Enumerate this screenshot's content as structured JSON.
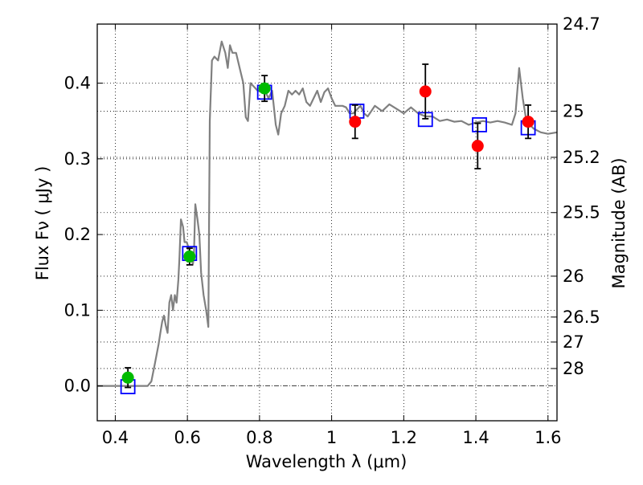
{
  "chart_data": {
    "type": "scatter",
    "xlabel": "Wavelength  λ (μm)",
    "ylabel": "Flux  Fν  ( μJy )",
    "y2label": "Magnitude (AB)",
    "xlim": [
      0.35,
      1.625
    ],
    "ylim": [
      -0.046,
      0.478
    ],
    "grid": true,
    "x_ticks": [
      0.4,
      0.6,
      0.8,
      1.0,
      1.2,
      1.4,
      1.6
    ],
    "x_tick_labels": [
      "0.4",
      "0.6",
      "0.8",
      "1",
      "1.2",
      "1.4",
      "1.6"
    ],
    "y_ticks": [
      0.0,
      0.1,
      0.2,
      0.3,
      0.4
    ],
    "y_tick_labels": [
      "0.0",
      "0.1",
      "0.2",
      "0.3",
      "0.4"
    ],
    "right_ticks": [
      {
        "label": "24.7",
        "flux": 0.478
      },
      {
        "label": "25",
        "flux": 0.363
      },
      {
        "label": "25.2",
        "flux": 0.302
      },
      {
        "label": "25.5",
        "flux": 0.229
      },
      {
        "label": "26",
        "flux": 0.145
      },
      {
        "label": "26.5",
        "flux": 0.091
      },
      {
        "label": "27",
        "flux": 0.058
      },
      {
        "label": "28",
        "flux": 0.023
      }
    ],
    "sed_model": {
      "color": "#808080",
      "points": [
        [
          0.35,
          0.0
        ],
        [
          0.49,
          0.0
        ],
        [
          0.5,
          0.006
        ],
        [
          0.51,
          0.03
        ],
        [
          0.52,
          0.055
        ],
        [
          0.525,
          0.07
        ],
        [
          0.53,
          0.085
        ],
        [
          0.535,
          0.093
        ],
        [
          0.54,
          0.08
        ],
        [
          0.545,
          0.07
        ],
        [
          0.55,
          0.11
        ],
        [
          0.555,
          0.12
        ],
        [
          0.56,
          0.1
        ],
        [
          0.565,
          0.12
        ],
        [
          0.57,
          0.11
        ],
        [
          0.575,
          0.14
        ],
        [
          0.578,
          0.17
        ],
        [
          0.582,
          0.22
        ],
        [
          0.588,
          0.21
        ],
        [
          0.592,
          0.19
        ],
        [
          0.598,
          0.19
        ],
        [
          0.605,
          0.18
        ],
        [
          0.61,
          0.175
        ],
        [
          0.615,
          0.16
        ],
        [
          0.618,
          0.17
        ],
        [
          0.622,
          0.24
        ],
        [
          0.628,
          0.22
        ],
        [
          0.633,
          0.2
        ],
        [
          0.638,
          0.15
        ],
        [
          0.645,
          0.12
        ],
        [
          0.652,
          0.1
        ],
        [
          0.658,
          0.078
        ],
        [
          0.662,
          0.35
        ],
        [
          0.668,
          0.43
        ],
        [
          0.675,
          0.435
        ],
        [
          0.685,
          0.43
        ],
        [
          0.695,
          0.455
        ],
        [
          0.705,
          0.44
        ],
        [
          0.712,
          0.42
        ],
        [
          0.718,
          0.45
        ],
        [
          0.725,
          0.44
        ],
        [
          0.735,
          0.44
        ],
        [
          0.745,
          0.42
        ],
        [
          0.755,
          0.4
        ],
        [
          0.762,
          0.355
        ],
        [
          0.768,
          0.35
        ],
        [
          0.775,
          0.4
        ],
        [
          0.785,
          0.395
        ],
        [
          0.795,
          0.39
        ],
        [
          0.805,
          0.39
        ],
        [
          0.815,
          0.39
        ],
        [
          0.825,
          0.38
        ],
        [
          0.835,
          0.39
        ],
        [
          0.845,
          0.345
        ],
        [
          0.852,
          0.332
        ],
        [
          0.86,
          0.36
        ],
        [
          0.87,
          0.37
        ],
        [
          0.88,
          0.39
        ],
        [
          0.89,
          0.385
        ],
        [
          0.9,
          0.39
        ],
        [
          0.91,
          0.385
        ],
        [
          0.92,
          0.393
        ],
        [
          0.93,
          0.375
        ],
        [
          0.94,
          0.37
        ],
        [
          0.95,
          0.38
        ],
        [
          0.96,
          0.39
        ],
        [
          0.97,
          0.375
        ],
        [
          0.98,
          0.388
        ],
        [
          0.99,
          0.393
        ],
        [
          1.0,
          0.38
        ],
        [
          1.01,
          0.37
        ],
        [
          1.02,
          0.37
        ],
        [
          1.03,
          0.37
        ],
        [
          1.04,
          0.368
        ],
        [
          1.05,
          0.36
        ],
        [
          1.06,
          0.36
        ],
        [
          1.07,
          0.365
        ],
        [
          1.08,
          0.37
        ],
        [
          1.09,
          0.36
        ],
        [
          1.1,
          0.356
        ],
        [
          1.12,
          0.37
        ],
        [
          1.14,
          0.363
        ],
        [
          1.16,
          0.372
        ],
        [
          1.18,
          0.366
        ],
        [
          1.2,
          0.36
        ],
        [
          1.22,
          0.368
        ],
        [
          1.24,
          0.36
        ],
        [
          1.26,
          0.356
        ],
        [
          1.28,
          0.356
        ],
        [
          1.3,
          0.35
        ],
        [
          1.32,
          0.352
        ],
        [
          1.34,
          0.349
        ],
        [
          1.36,
          0.35
        ],
        [
          1.38,
          0.345
        ],
        [
          1.4,
          0.348
        ],
        [
          1.42,
          0.35
        ],
        [
          1.44,
          0.348
        ],
        [
          1.46,
          0.35
        ],
        [
          1.48,
          0.348
        ],
        [
          1.5,
          0.345
        ],
        [
          1.51,
          0.36
        ],
        [
          1.52,
          0.42
        ],
        [
          1.53,
          0.38
        ],
        [
          1.54,
          0.35
        ],
        [
          1.56,
          0.34
        ],
        [
          1.58,
          0.335
        ],
        [
          1.6,
          0.333
        ],
        [
          1.625,
          0.335
        ]
      ]
    },
    "model_photometry": {
      "marker": "open-square",
      "color": "#0000ff",
      "points": [
        {
          "x": 0.435,
          "y": -0.001
        },
        {
          "x": 0.606,
          "y": 0.175
        },
        {
          "x": 0.814,
          "y": 0.388
        },
        {
          "x": 1.07,
          "y": 0.363
        },
        {
          "x": 1.26,
          "y": 0.352
        },
        {
          "x": 1.41,
          "y": 0.345
        },
        {
          "x": 1.545,
          "y": 0.341
        }
      ]
    },
    "observed_ground": {
      "marker": "filled-circle",
      "color": "#00bb00",
      "points": [
        {
          "x": 0.435,
          "y": 0.011,
          "err": 0.013
        },
        {
          "x": 0.606,
          "y": 0.171,
          "err": 0.011
        },
        {
          "x": 0.814,
          "y": 0.393,
          "err": 0.017
        }
      ]
    },
    "observed_ir": {
      "marker": "filled-circle",
      "color": "#ff0000",
      "points": [
        {
          "x": 1.065,
          "y": 0.349,
          "err": 0.022
        },
        {
          "x": 1.26,
          "y": 0.389,
          "err": 0.036
        },
        {
          "x": 1.405,
          "y": 0.317,
          "err": 0.03
        },
        {
          "x": 1.545,
          "y": 0.349,
          "err": 0.022
        }
      ]
    }
  }
}
